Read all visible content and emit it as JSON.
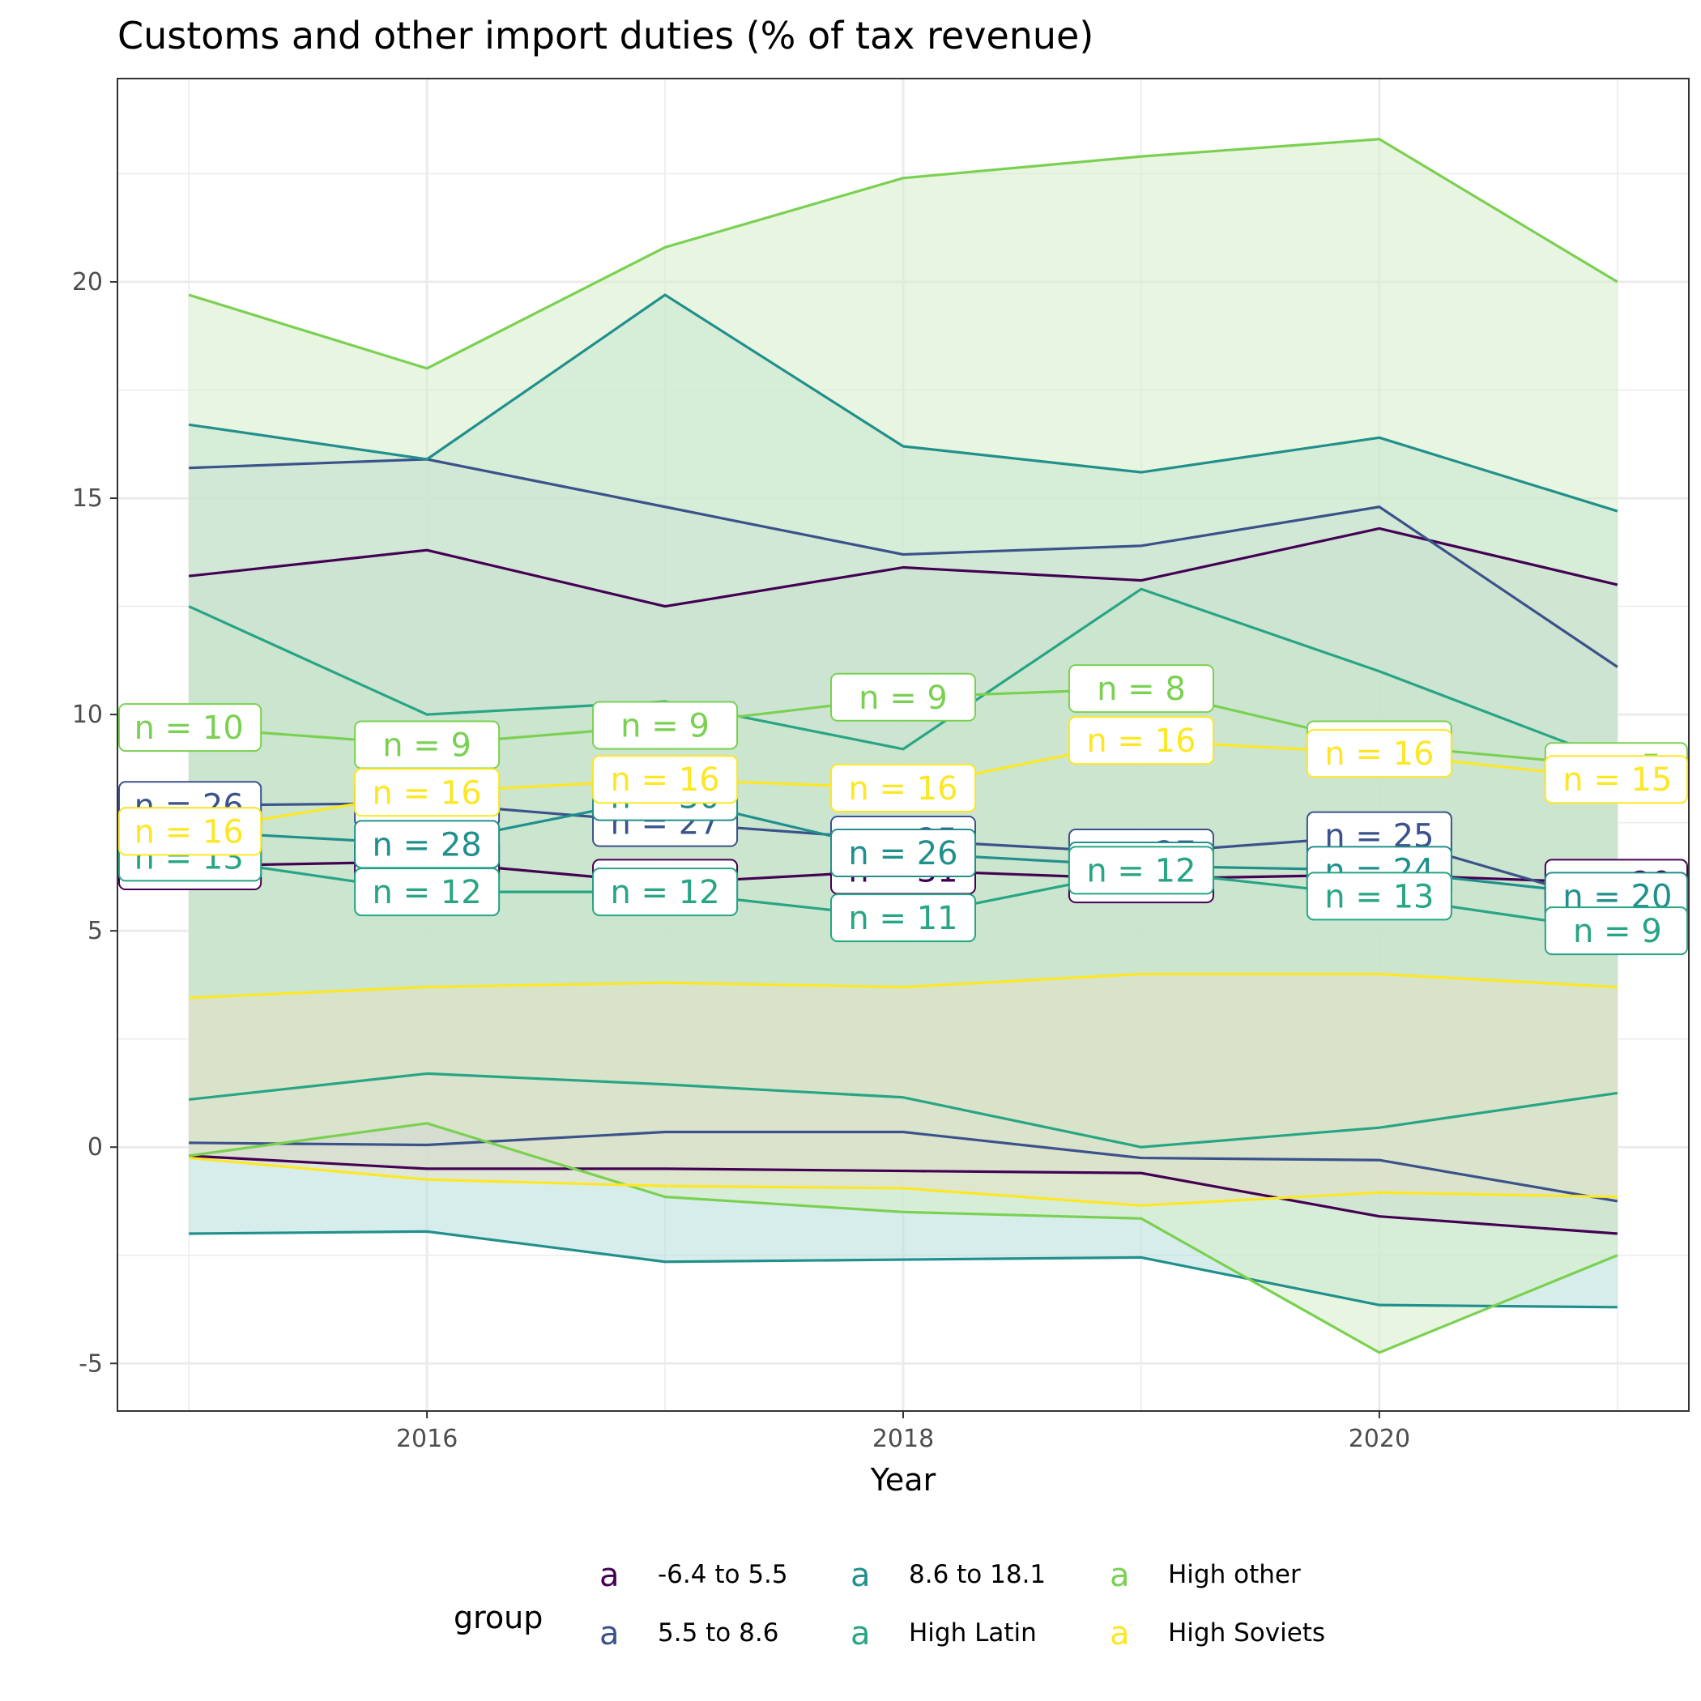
{
  "chart_data": {
    "type": "line",
    "title": "Customs and other import duties (% of tax revenue)",
    "xlabel": "Year",
    "ylabel": "",
    "xlim": [
      2014.7,
      2021.3
    ],
    "ylim": [
      -6.1,
      24.7
    ],
    "x_ticks": [
      2016,
      2018,
      2020
    ],
    "y_ticks": [
      -5,
      0,
      5,
      10,
      15,
      20
    ],
    "y_tick_labels": [
      "-5",
      "0",
      "5",
      "10",
      "15",
      "20"
    ],
    "grid": true,
    "legend_title": "group",
    "legend_position": "bottom",
    "x": [
      2015,
      2016,
      2017,
      2018,
      2019,
      2020,
      2021
    ],
    "series": [
      {
        "name": "-6.4 to 5.5",
        "color": "#440154",
        "fill": "#c9b8cc",
        "mean": [
          6.5,
          6.6,
          6.1,
          6.4,
          6.2,
          6.3,
          6.1
        ],
        "upper": [
          13.2,
          13.8,
          12.5,
          13.4,
          13.1,
          14.3,
          13.0
        ],
        "lower": [
          -0.2,
          -0.5,
          -0.5,
          -0.55,
          -0.6,
          -1.6,
          -2.0
        ],
        "n": [
          "n = 32",
          "n = 32",
          "n = 31",
          "n = 31",
          "n = 30",
          "n = 30",
          "n = 29"
        ]
      },
      {
        "name": "5.5 to 8.6",
        "color": "#3b528b",
        "fill": "#c8d3e8",
        "mean": [
          7.9,
          7.95,
          7.5,
          7.1,
          6.8,
          7.2,
          5.6
        ],
        "upper": [
          15.7,
          15.9,
          14.8,
          13.7,
          13.9,
          14.8,
          11.1
        ],
        "lower": [
          0.1,
          0.05,
          0.35,
          0.35,
          -0.25,
          -0.3,
          -1.25
        ],
        "n": [
          "n = 26",
          "n = 27",
          "n = 27",
          "n = 25",
          "n = 27",
          "n = 25",
          "n = 20"
        ]
      },
      {
        "name": "8.6 to 18.1",
        "color": "#21908c",
        "fill": "#b7dedb",
        "mean": [
          7.3,
          7.0,
          8.1,
          6.8,
          6.5,
          6.4,
          5.8
        ],
        "upper": [
          16.7,
          15.9,
          19.7,
          16.2,
          15.6,
          16.4,
          14.7
        ],
        "lower": [
          -2.0,
          -1.95,
          -2.65,
          -2.6,
          -2.55,
          -3.65,
          -3.7
        ],
        "n": [
          "n = 28",
          "n = 28",
          "n = 30",
          "n = 26",
          "n = 27",
          "n = 24",
          "n = 20"
        ]
      },
      {
        "name": "High Latin",
        "color": "#27a584",
        "fill": "#b9dfcf",
        "mean": [
          6.7,
          5.9,
          5.9,
          5.3,
          6.4,
          5.8,
          5.0
        ],
        "upper": [
          12.5,
          10.0,
          10.3,
          9.2,
          12.9,
          11.0,
          8.9
        ],
        "lower": [
          1.1,
          1.7,
          1.45,
          1.15,
          0.0,
          0.45,
          1.25
        ],
        "n": [
          "n = 13",
          "n = 12",
          "n = 12",
          "n = 11",
          "n = 12",
          "n = 13",
          "n = 9"
        ]
      },
      {
        "name": "High other",
        "color": "#7ad151",
        "fill": "#d5ecc8",
        "mean": [
          9.7,
          9.3,
          9.75,
          10.4,
          10.6,
          9.3,
          8.8
        ],
        "upper": [
          19.7,
          18.0,
          20.8,
          22.4,
          22.9,
          23.3,
          20.0
        ],
        "lower": [
          -0.2,
          0.55,
          -1.15,
          -1.5,
          -1.65,
          -4.75,
          -2.5
        ],
        "n": [
          "n = 10",
          "n = 9",
          "n = 9",
          "n = 9",
          "n = 8",
          "n = 7",
          "n = 5"
        ]
      },
      {
        "name": "High Soviets",
        "color": "#fde725",
        "fill": "#e6e1c6",
        "mean": [
          7.3,
          8.2,
          8.5,
          8.3,
          9.4,
          9.1,
          8.5
        ],
        "upper": [
          3.45,
          3.7,
          3.8,
          3.7,
          4.0,
          4.0,
          3.7
        ],
        "lower": [
          -0.25,
          -0.75,
          -0.9,
          -0.95,
          -1.35,
          -1.05,
          -1.15
        ],
        "n": [
          "n = 16",
          "n = 16",
          "n = 16",
          "n = 16",
          "n = 16",
          "n = 16",
          "n = 15"
        ]
      }
    ],
    "legend_key_glyph": "a"
  }
}
